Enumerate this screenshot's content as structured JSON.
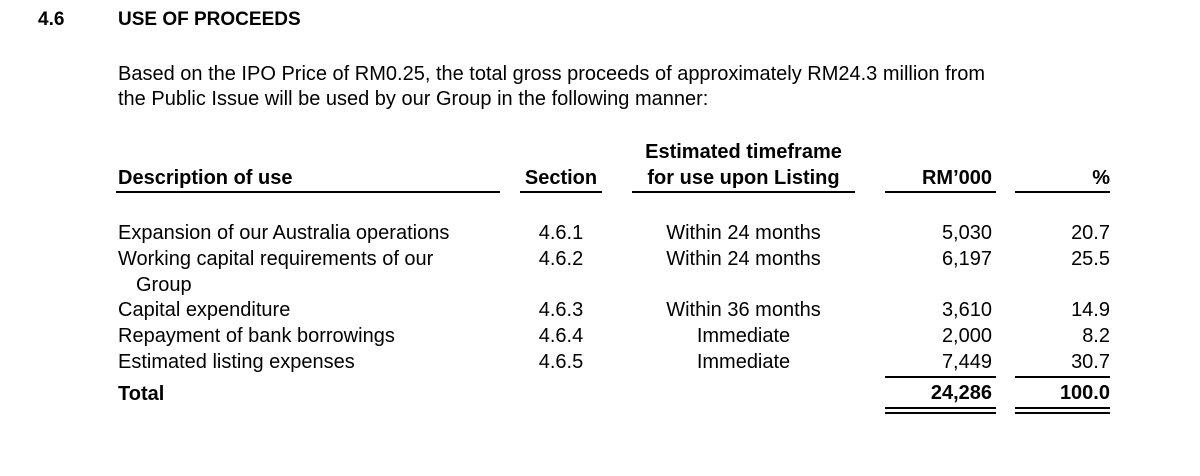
{
  "section_number": "4.6",
  "section_title": "USE OF PROCEEDS",
  "intro_lines": [
    "Based on the IPO Price of RM0.25, the total gross proceeds of approximately RM24.3 million from",
    "the Public Issue will be used by our Group in the following manner:"
  ],
  "table": {
    "headers": {
      "description": "Description of use",
      "section": "Section",
      "timeframe_line1": "Estimated timeframe",
      "timeframe_line2": "for use upon Listing",
      "amount": "RM’000",
      "percent": "%"
    },
    "rows": [
      {
        "description": "Expansion of our Australia operations",
        "section": "4.6.1",
        "timeframe": "Within 24 months",
        "amount": "5,030",
        "percent": "20.7"
      },
      {
        "description": "Working capital requirements of our",
        "description_cont": "Group",
        "section": "4.6.2",
        "timeframe": "Within 24 months",
        "amount": "6,197",
        "percent": "25.5"
      },
      {
        "description": "Capital expenditure",
        "section": "4.6.3",
        "timeframe": "Within 36 months",
        "amount": "3,610",
        "percent": "14.9"
      },
      {
        "description": "Repayment of bank borrowings",
        "section": "4.6.4",
        "timeframe": "Immediate",
        "amount": "2,000",
        "percent": "8.2"
      },
      {
        "description": "Estimated listing expenses",
        "section": "4.6.5",
        "timeframe": "Immediate",
        "amount": "7,449",
        "percent": "30.7"
      }
    ],
    "total": {
      "label": "Total",
      "amount": "24,286",
      "percent": "100.0"
    }
  }
}
